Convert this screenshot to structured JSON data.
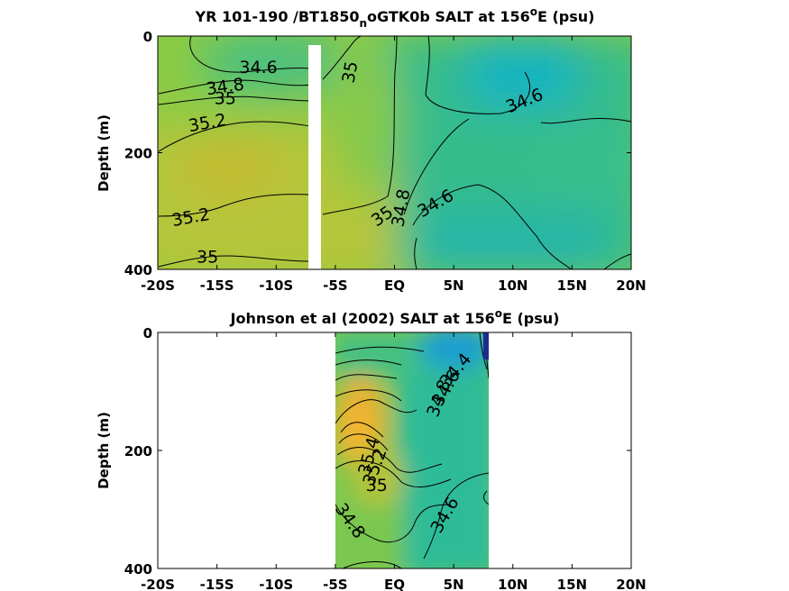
{
  "chart_data": [
    {
      "type": "heatmap",
      "title_main": "YR 101-190 /BT1850",
      "title_sub": "n",
      "title_rest": "oGTK0b SALT at 156",
      "title_sup": "o",
      "title_end": "E (psu)",
      "ylabel": "Depth (m)",
      "xlabel": "",
      "x_ticks": [
        "-20S",
        "-15S",
        "-10S",
        "-5S",
        "EQ",
        "5N",
        "10N",
        "15N",
        "20N"
      ],
      "y_ticks": [
        "0",
        "200",
        "400"
      ],
      "xlim": [
        -20,
        20
      ],
      "ylim": [
        0,
        400
      ],
      "contour_labels": [
        {
          "text": "34.6",
          "x": -11.5,
          "y": 55,
          "rot": 0
        },
        {
          "text": "34.8",
          "x": -14.3,
          "y": 88,
          "rot": -8
        },
        {
          "text": "35",
          "x": -14.3,
          "y": 108,
          "rot": 0
        },
        {
          "text": "35.2",
          "x": -15.8,
          "y": 150,
          "rot": -10
        },
        {
          "text": "35",
          "x": -3.7,
          "y": 62,
          "rot": -80
        },
        {
          "text": "34.6",
          "x": 11.0,
          "y": 112,
          "rot": -22
        },
        {
          "text": "35.2",
          "x": -17.2,
          "y": 312,
          "rot": -10
        },
        {
          "text": "35",
          "x": -1.0,
          "y": 310,
          "rot": -35
        },
        {
          "text": "34.8",
          "x": 0.6,
          "y": 295,
          "rot": -80
        },
        {
          "text": "34.6",
          "x": 3.5,
          "y": 288,
          "rot": -30
        },
        {
          "text": "35",
          "x": -15.8,
          "y": 380,
          "rot": 0
        }
      ]
    },
    {
      "type": "heatmap",
      "title_main": "Johnson et al (2002) SALT at 156",
      "title_sup": "o",
      "title_end": "E (psu)",
      "ylabel": "Depth (m)",
      "xlabel": "",
      "x_ticks": [
        "-20S",
        "-15S",
        "-10S",
        "-5S",
        "EQ",
        "5N",
        "10N",
        "15N",
        "20N"
      ],
      "y_ticks": [
        "0",
        "200",
        "400"
      ],
      "xlim": [
        -20,
        20
      ],
      "ylim": [
        0,
        400
      ],
      "data_range_x": [
        -5,
        8
      ],
      "contour_labels": [
        {
          "text": "34.4",
          "x": 5.2,
          "y": 65,
          "rot": -50
        },
        {
          "text": "34.6",
          "x": 4.4,
          "y": 95,
          "rot": -60
        },
        {
          "text": "34.8",
          "x": 3.8,
          "y": 112,
          "rot": -70
        },
        {
          "text": "35.4",
          "x": -2.1,
          "y": 210,
          "rot": -75
        },
        {
          "text": "35.2",
          "x": -1.6,
          "y": 228,
          "rot": -70
        },
        {
          "text": "35",
          "x": -1.5,
          "y": 260,
          "rot": 0
        },
        {
          "text": "34.8",
          "x": -3.8,
          "y": 320,
          "rot": 55
        },
        {
          "text": "34.6",
          "x": 4.3,
          "y": 310,
          "rot": -60
        }
      ]
    }
  ]
}
